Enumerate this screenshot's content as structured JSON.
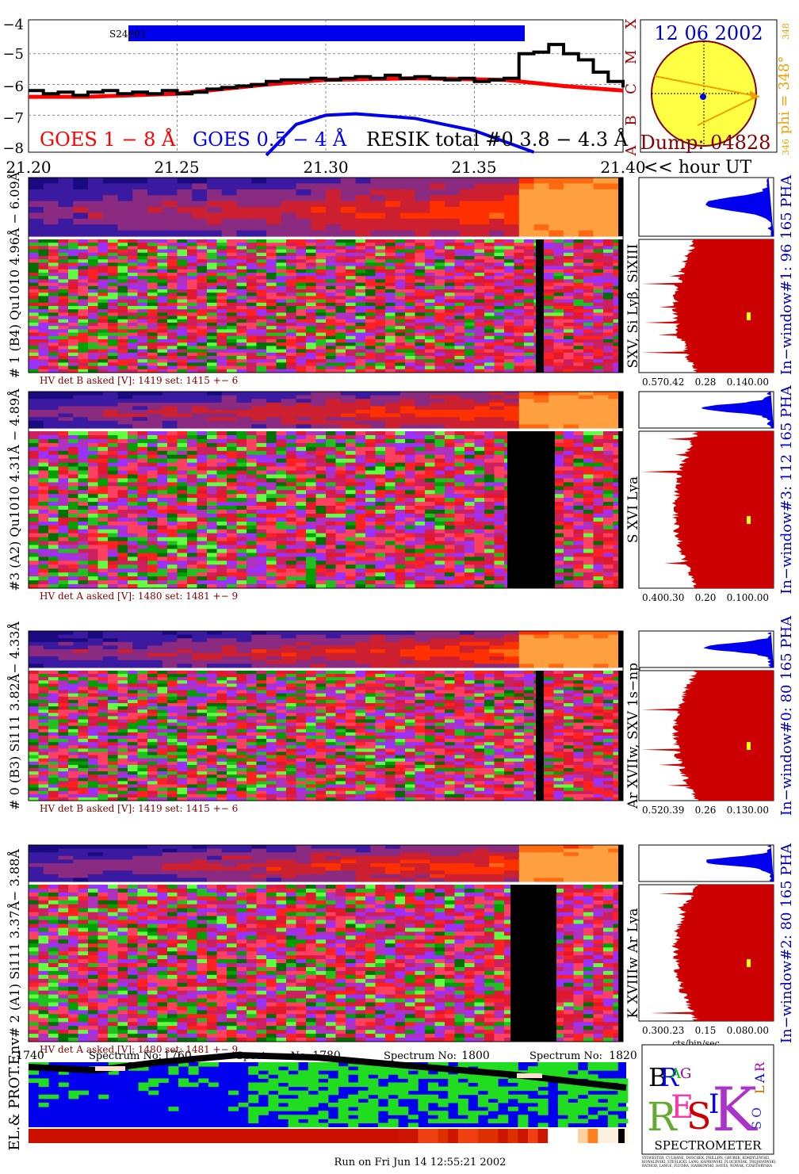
{
  "chart_data": {
    "type": "line",
    "goes": {
      "date": "12 06 2002",
      "dump": "Dump: 04828",
      "seq_label": "S24802",
      "labels": {
        "goes_long": "GOES 1 − 8 Å",
        "goes_short": "GOES 0.5 − 4 Å",
        "resik_total": "RESIK total #0  3.8 − 4.3 Å",
        "time_axis": "<< hour UT"
      },
      "y_ticks": [
        "−4",
        "−5",
        "−6",
        "−7",
        "−8"
      ],
      "class_labels": [
        "A",
        "B",
        "C",
        "M",
        "X"
      ],
      "x_ticks": [
        "21.20",
        "21.25",
        "21.30",
        "21.35",
        "21.40"
      ],
      "xlim": [
        21.2,
        21.4
      ],
      "ylim": [
        -8.2,
        -3.9
      ],
      "goes_long_x": [
        21.2,
        21.22,
        21.25,
        21.28,
        21.3,
        21.33,
        21.36,
        21.38,
        21.4
      ],
      "goes_long_y": [
        -6.4,
        -6.4,
        -6.3,
        -6.0,
        -5.85,
        -5.8,
        -5.85,
        -6.05,
        -6.2
      ],
      "goes_short_x": [
        21.28,
        21.29,
        21.3,
        21.31,
        21.33,
        21.35,
        21.37
      ],
      "goes_short_y": [
        -8.3,
        -7.3,
        -7.0,
        -6.95,
        -7.1,
        -7.5,
        -8.2
      ],
      "resik_x": [
        21.2,
        21.205,
        21.21,
        21.215,
        21.22,
        21.225,
        21.23,
        21.235,
        21.24,
        21.245,
        21.25,
        21.255,
        21.26,
        21.265,
        21.27,
        21.275,
        21.28,
        21.285,
        21.29,
        21.295,
        21.3,
        21.305,
        21.31,
        21.315,
        21.32,
        21.325,
        21.33,
        21.335,
        21.34,
        21.345,
        21.35,
        21.355,
        21.36,
        21.365,
        21.37,
        21.375,
        21.38,
        21.385,
        21.39,
        21.395,
        21.4
      ],
      "resik_y": [
        -6.2,
        -6.3,
        -6.25,
        -6.35,
        -6.25,
        -6.2,
        -6.3,
        -6.25,
        -6.3,
        -6.2,
        -6.3,
        -6.25,
        -6.15,
        -6.1,
        -6.05,
        -6.0,
        -5.9,
        -5.85,
        -5.85,
        -5.8,
        -5.85,
        -5.8,
        -5.75,
        -5.8,
        -5.7,
        -5.8,
        -5.75,
        -5.8,
        -5.85,
        -5.8,
        -5.9,
        -5.85,
        -5.8,
        -5.0,
        -4.95,
        -4.7,
        -5.0,
        -5.2,
        -5.6,
        -5.9,
        -6.1
      ],
      "phi_label": "phi = 348°",
      "phi_sub_left": "346",
      "phi_sub_right": "348",
      "colors": {
        "long": "#ff0000",
        "short": "#0000ff",
        "resik": "#000000",
        "class": "#a00000",
        "date": "#0000c0",
        "dump": "#800000",
        "phi": "#f0a000"
      }
    },
    "channels": [
      {
        "id": "ch1",
        "title": "# 1 (B4) Qu1010 4.96Å − 6.09Å",
        "lines": "SXV, Si Lyβ, SiXIII",
        "hv": "HV det B asked [V]:  1419  set:  1415  +−    6",
        "window": "In−window#1:   96 165  PHA",
        "spec_ticks": [
          "0.57",
          "0.42",
          "0.28",
          "0.14",
          "0.00"
        ]
      },
      {
        "id": "ch3",
        "title": "#3 (A2) Qu1010  4.31Å − 4.89Å",
        "lines": "S XVI Lya",
        "hv": "HV det A asked [V]:  1480  set:  1481  +−    9",
        "window": "In−window#3:   112 165  PHA",
        "spec_ticks": [
          "0.40",
          "0.30",
          "0.20",
          "0.10",
          "0.00"
        ]
      },
      {
        "id": "ch0",
        "title": "# 0 (B3) Si111  3.82Å− 4.33Å",
        "lines": "Ar XVIIw,  SXV 1s−np",
        "hv": "HV det B asked [V]:  1419  set:  1415  +−    6",
        "window": "In−window#0:   80 165  PHA",
        "spec_ticks": [
          "0.52",
          "0.39",
          "0.26",
          "0.13",
          "0.00"
        ]
      },
      {
        "id": "ch2",
        "title": "# 2 (A1) Si111  3.37Å− 3.88Å",
        "lines": "K XVIIIw  Ar Lya",
        "hv": "HV det A asked [V]:  1480  set:  1481  +−    9",
        "window": "In−window#2:   80 165  PHA",
        "spec_ticks": [
          "0.30",
          "0.23",
          "0.15",
          "0.08",
          "0.00"
        ]
      }
    ],
    "spectrum_axis": {
      "ticks": [
        "1740",
        "1760",
        "1780",
        "1800",
        "1820"
      ],
      "label": "Spectrum No:",
      "unit": "cts/bin/sec"
    },
    "env_label": "EL.& PROT.Env",
    "logo": {
      "letters": [
        "B",
        "R",
        "A",
        "G",
        "R",
        "E",
        "S",
        "I",
        "K",
        "S",
        "O",
        "L",
        "A",
        "R"
      ],
      "subtitle": "SPECTROMETER",
      "credits_1": "SYLWESTER, CULHANE, DOSCHEK, PHILLIPS, GBUREK, KORDYLEWSKI,",
      "credits_2": "KOWALINSKI, STEŚLICKI, LANG, KAPROWSKI, PLOCIENIAK, TROJANOWSKI,",
      "credits_3": "RATHOD, LANGE, FLUDRA, SIARKOWSKI, HAYES, NOWAK, CZARTORYSKA"
    },
    "footer": "Run on Fri Jun 14 12:55:21 2002"
  }
}
